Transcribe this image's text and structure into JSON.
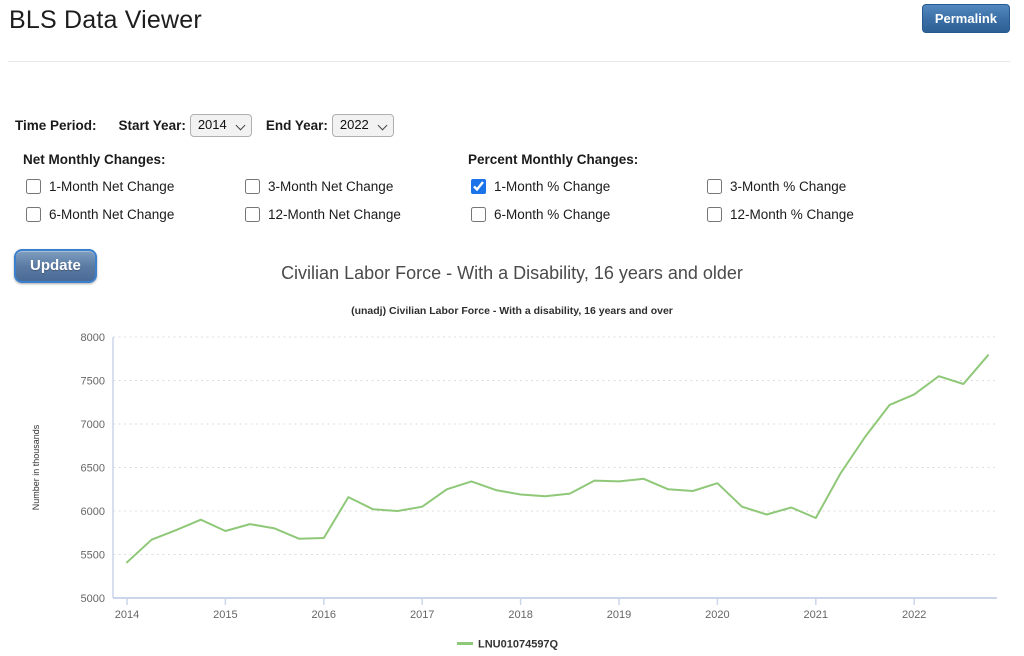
{
  "page": {
    "title": "BLS Data Viewer"
  },
  "header": {
    "permalink_label": "Permalink"
  },
  "controls": {
    "time_period_label": "Time Period:",
    "start_year_label": "Start Year:",
    "start_year_value": "2014",
    "end_year_label": "End Year:",
    "end_year_value": "2022",
    "net_group": {
      "heading": "Net Monthly Changes:",
      "items": [
        {
          "label": "1-Month Net Change",
          "checked": false
        },
        {
          "label": "3-Month Net Change",
          "checked": false
        },
        {
          "label": "6-Month Net Change",
          "checked": false
        },
        {
          "label": "12-Month Net Change",
          "checked": false
        }
      ]
    },
    "percent_group": {
      "heading": "Percent Monthly Changes:",
      "items": [
        {
          "label": "1-Month % Change",
          "checked": true
        },
        {
          "label": "3-Month % Change",
          "checked": false
        },
        {
          "label": "6-Month % Change",
          "checked": false
        },
        {
          "label": "12-Month % Change",
          "checked": false
        }
      ]
    },
    "update_label": "Update"
  },
  "chart_data": {
    "type": "line",
    "title": "Civilian Labor Force - With a Disability, 16 years and older",
    "subtitle": "(unadj) Civilian Labor Force - With a disability, 16 years and over",
    "ylabel": "Number in thousands",
    "ylim": [
      5000,
      8000
    ],
    "ytick_step": 500,
    "ytick_labels": [
      "5000",
      "5500",
      "6000",
      "6500",
      "7000",
      "7500",
      "8000"
    ],
    "x_tick_labels": [
      "2014",
      "2015",
      "2016",
      "2017",
      "2018",
      "2019",
      "2020",
      "2021",
      "2022"
    ],
    "frequency": "quarterly",
    "x": [
      "2014 Q1",
      "2014 Q2",
      "2014 Q3",
      "2014 Q4",
      "2015 Q1",
      "2015 Q2",
      "2015 Q3",
      "2015 Q4",
      "2016 Q1",
      "2016 Q2",
      "2016 Q3",
      "2016 Q4",
      "2017 Q1",
      "2017 Q2",
      "2017 Q3",
      "2017 Q4",
      "2018 Q1",
      "2018 Q2",
      "2018 Q3",
      "2018 Q4",
      "2019 Q1",
      "2019 Q2",
      "2019 Q3",
      "2019 Q4",
      "2020 Q1",
      "2020 Q2",
      "2020 Q3",
      "2020 Q4",
      "2021 Q1",
      "2021 Q2",
      "2021 Q3",
      "2021 Q4",
      "2022 Q1",
      "2022 Q2",
      "2022 Q3",
      "2022 Q4"
    ],
    "series": [
      {
        "name": "LNU01074597Q",
        "color": "#8fc878",
        "values": [
          5410,
          5670,
          5780,
          5900,
          5770,
          5850,
          5800,
          5680,
          5690,
          6160,
          6020,
          6000,
          6050,
          6250,
          6340,
          6240,
          6190,
          6170,
          6200,
          6350,
          6340,
          6370,
          6250,
          6230,
          6320,
          6050,
          5960,
          6040,
          5920,
          6430,
          6850,
          7220,
          7340,
          7550,
          7460,
          7790
        ]
      }
    ],
    "grid": "dotted horizontal gridlines",
    "legend_position": "bottom center",
    "axis_color": "#ccd6eb"
  }
}
